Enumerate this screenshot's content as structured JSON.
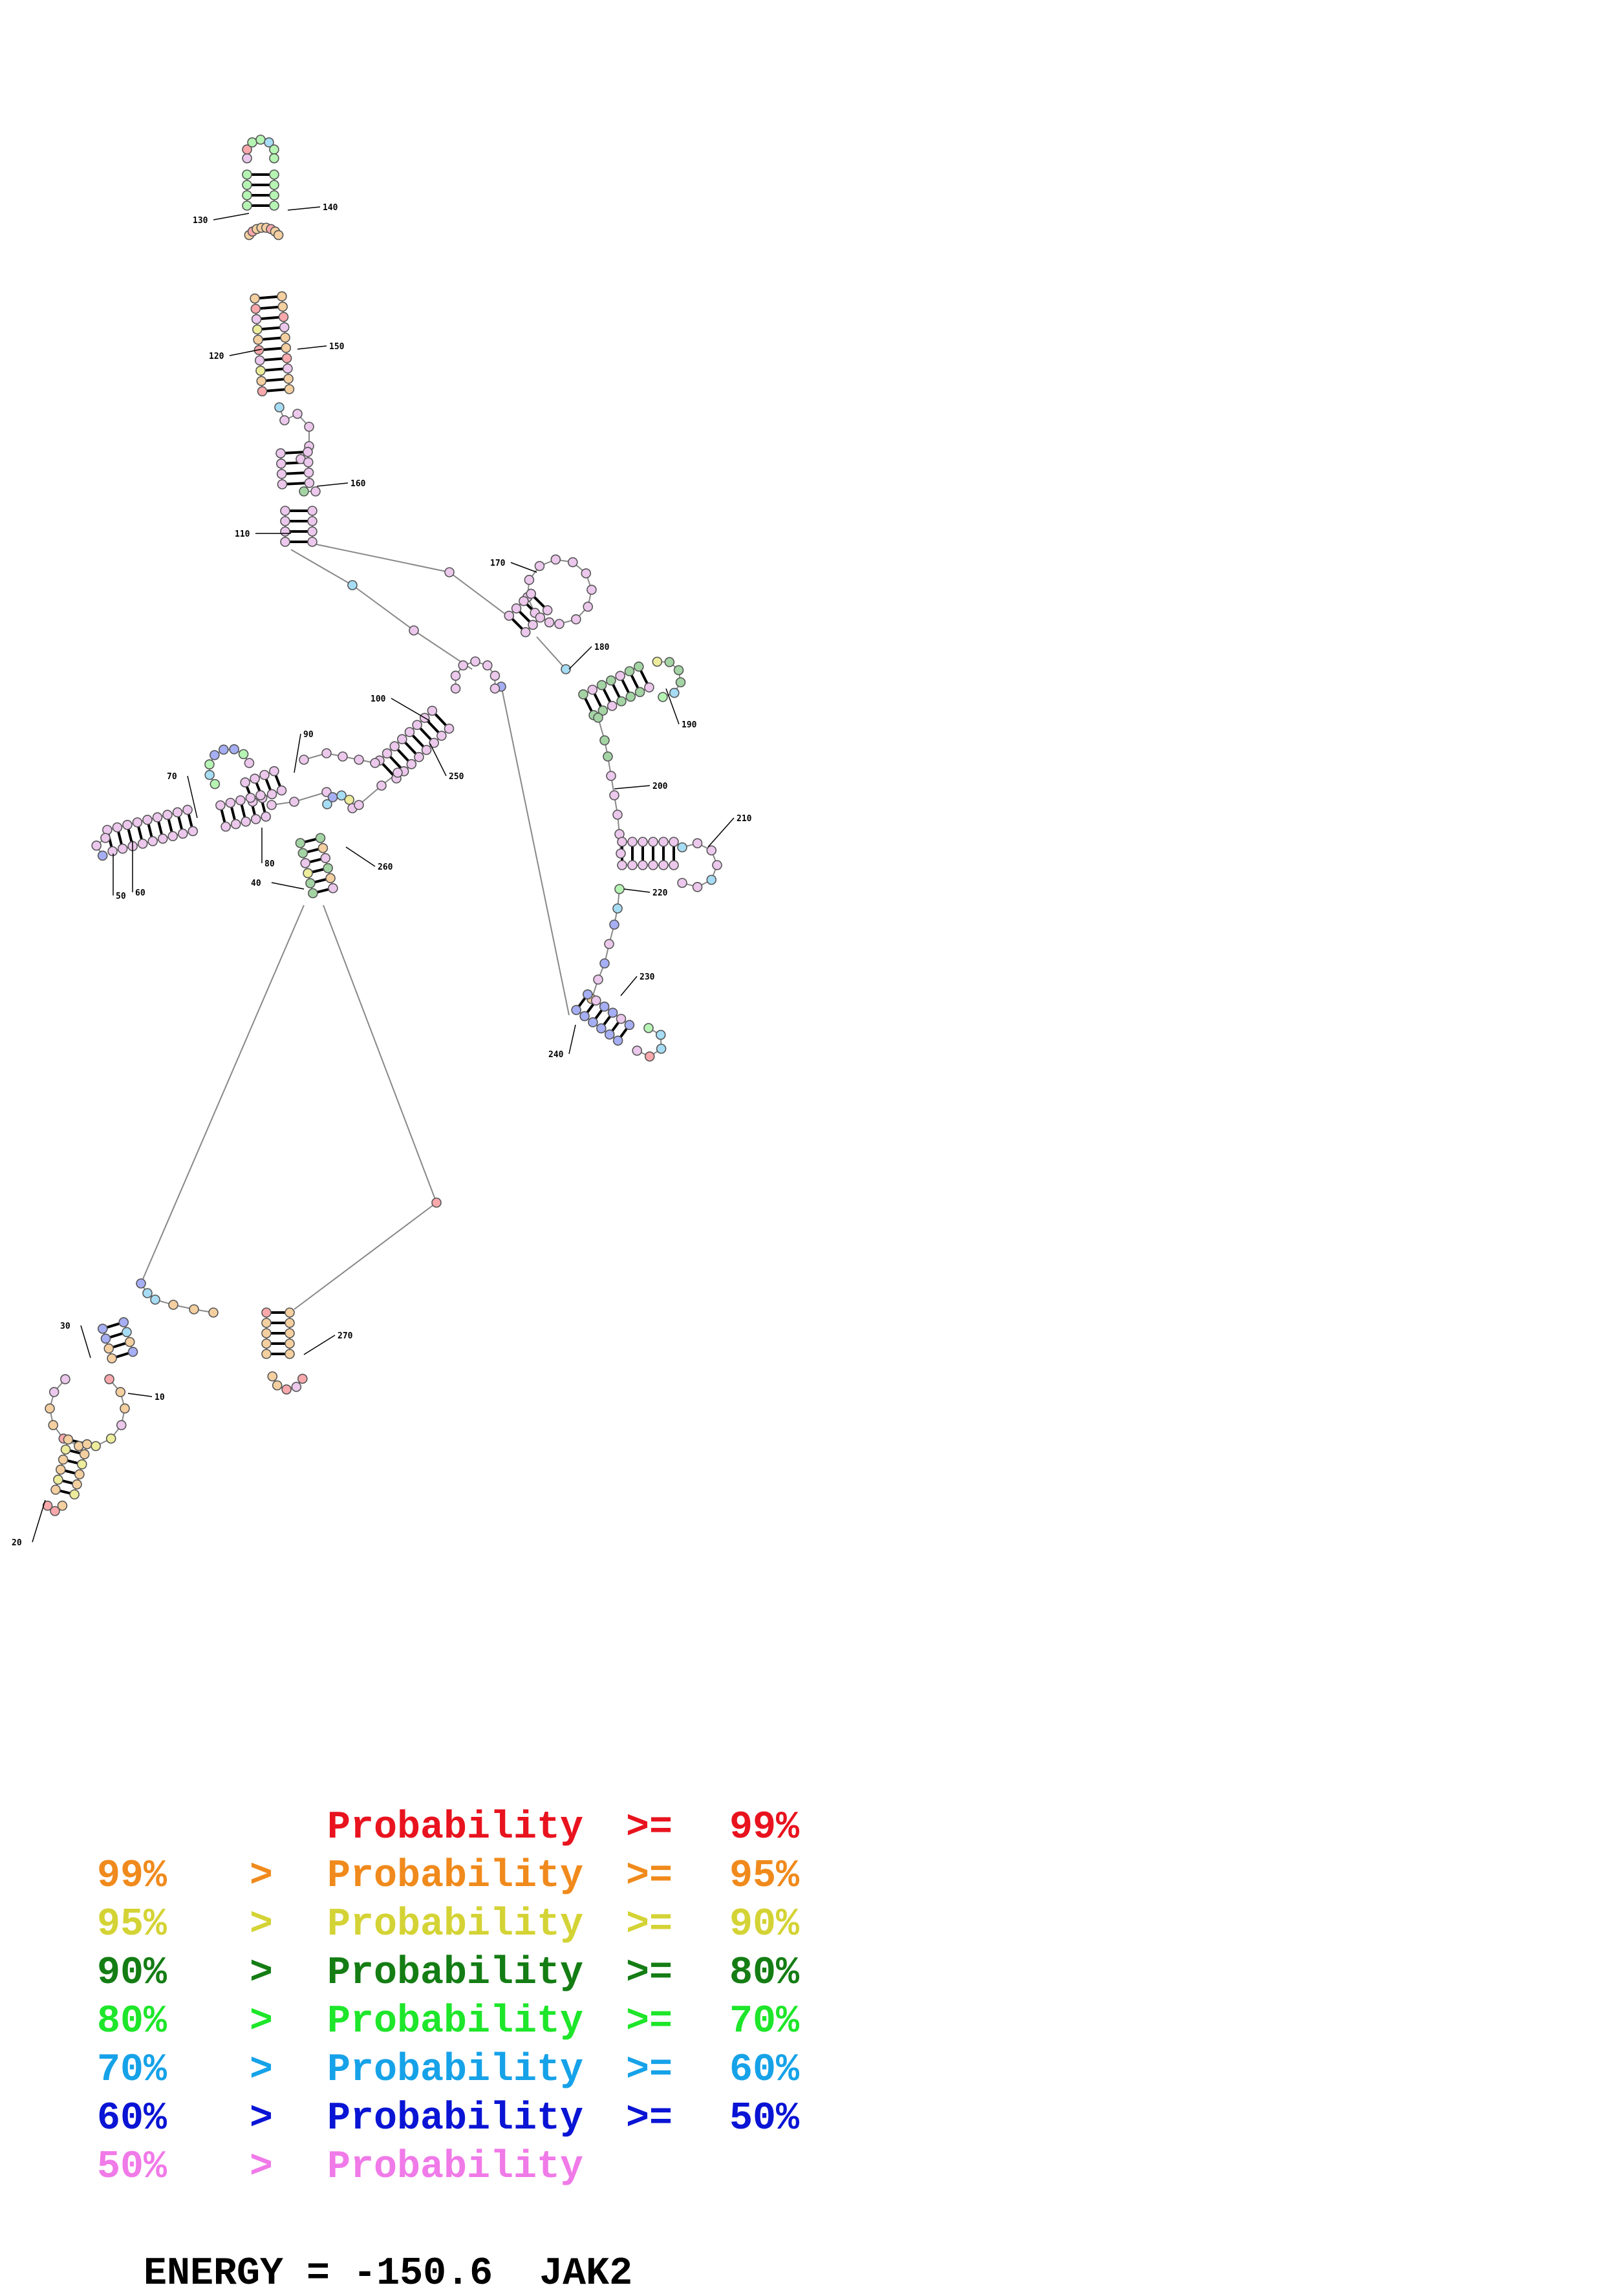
{
  "molecule": {
    "name": "JAK2",
    "energy_label": "ENERGY =",
    "energy_value": "-150.6"
  },
  "legend": [
    {
      "lower_text": "",
      "op1": "",
      "label": "Probability",
      "op2": ">=",
      "upper_text": "99%",
      "color": "#e8131e"
    },
    {
      "lower_text": "99%",
      "op1": ">",
      "label": "Probability",
      "op2": ">=",
      "upper_text": "95%",
      "color": "#f08a1c"
    },
    {
      "lower_text": "95%",
      "op1": ">",
      "label": "Probability",
      "op2": ">=",
      "upper_text": "90%",
      "color": "#d4d335"
    },
    {
      "lower_text": "90%",
      "op1": ">",
      "label": "Probability",
      "op2": ">=",
      "upper_text": "80%",
      "color": "#147d14"
    },
    {
      "lower_text": "80%",
      "op1": ">",
      "label": "Probability",
      "op2": ">=",
      "upper_text": "70%",
      "color": "#1ee62a"
    },
    {
      "lower_text": "70%",
      "op1": ">",
      "label": "Probability",
      "op2": ">=",
      "upper_text": "60%",
      "color": "#16a2e8"
    },
    {
      "lower_text": "60%",
      "op1": ">",
      "label": "Probability",
      "op2": ">=",
      "upper_text": "50%",
      "color": "#0a14d4"
    },
    {
      "lower_text": "50%",
      "op1": ">",
      "label": "Probability",
      "op2": "",
      "upper_text": "",
      "color": "#f07ae8"
    }
  ],
  "position_labels": [
    "10",
    "20",
    "30",
    "40",
    "50",
    "60",
    "70",
    "80",
    "90",
    "100",
    "110",
    "120",
    "130",
    "140",
    "150",
    "160",
    "170",
    "180",
    "190",
    "200",
    "210",
    "220",
    "230",
    "240",
    "250",
    "260",
    "270"
  ],
  "tier_colors": {
    "red": "#f9a8ac",
    "orange": "#f4cfa0",
    "yellow": "#ecec9c",
    "darkgreen": "#a4d4a4",
    "green": "#b6f4b4",
    "cyan": "#a6dcf4",
    "blue": "#a6aef4",
    "pink": "#ecc8ec"
  }
}
